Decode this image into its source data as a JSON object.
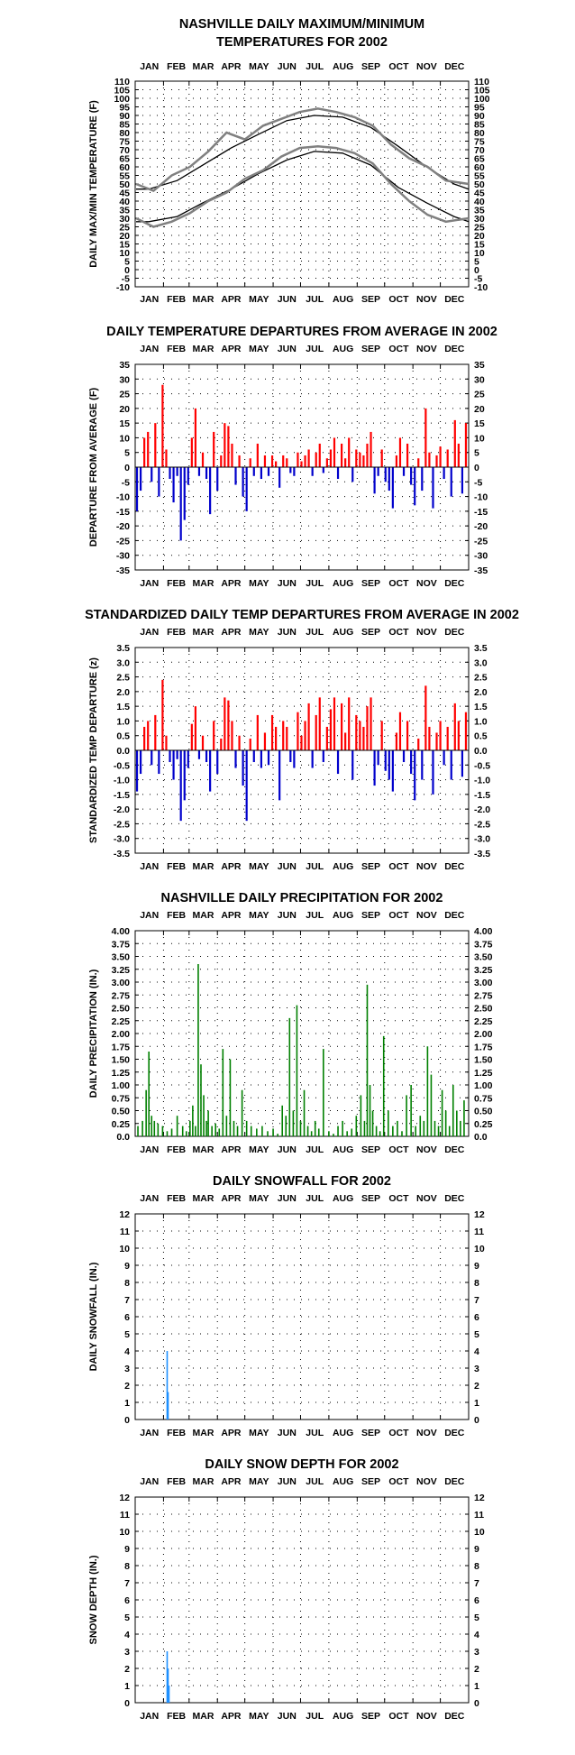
{
  "months": [
    "JAN",
    "FEB",
    "MAR",
    "APR",
    "MAY",
    "JUN",
    "JUL",
    "AUG",
    "SEP",
    "OCT",
    "NOV",
    "DEC"
  ],
  "colors": {
    "maxmin": "#808080",
    "normal": "#000000",
    "positive": "#ff0000",
    "negative": "#0000cc",
    "precip": "#008000",
    "snow": "#1e90ff"
  },
  "chart_data": [
    {
      "type": "line",
      "title": [
        "NASHVILLE DAILY MAXIMUM/MINIMUM",
        "TEMPERATURES FOR 2002"
      ],
      "ylabel": "DAILY MAX/MIN TEMPERATURE (F)",
      "ylim": [
        -10,
        110
      ],
      "ystep": 5,
      "yticks": [
        "110",
        "105",
        "100",
        "95",
        "90",
        "85",
        "80",
        "75",
        "70",
        "65",
        "60",
        "55",
        "50",
        "45",
        "40",
        "35",
        "30",
        "25",
        "20",
        "15",
        "10",
        "5",
        "0",
        "-5",
        "-10"
      ],
      "series": [
        {
          "role": "normal_max",
          "x": [
            1,
            15,
            46,
            74,
            105,
            135,
            166,
            196,
            227,
            258,
            288,
            319,
            349,
            365
          ],
          "values": [
            47,
            47,
            52,
            61,
            71,
            79,
            87,
            90,
            89,
            83,
            72,
            60,
            50,
            47
          ]
        },
        {
          "role": "normal_min",
          "x": [
            1,
            15,
            46,
            74,
            105,
            135,
            166,
            196,
            227,
            258,
            288,
            319,
            349,
            365
          ],
          "values": [
            28,
            28,
            31,
            39,
            47,
            56,
            64,
            69,
            68,
            61,
            48,
            39,
            31,
            28
          ]
        },
        {
          "role": "daily_max",
          "x": [
            1,
            20,
            40,
            60,
            80,
            100,
            120,
            140,
            160,
            180,
            200,
            220,
            240,
            260,
            280,
            300,
            320,
            340,
            365
          ],
          "values": [
            50,
            46,
            55,
            60,
            69,
            80,
            76,
            84,
            88,
            92,
            94,
            92,
            89,
            84,
            73,
            65,
            60,
            52,
            50
          ]
        },
        {
          "role": "daily_min",
          "x": [
            1,
            20,
            40,
            60,
            80,
            100,
            120,
            140,
            160,
            180,
            200,
            220,
            240,
            260,
            280,
            300,
            320,
            340,
            365
          ],
          "values": [
            30,
            25,
            28,
            33,
            40,
            45,
            53,
            58,
            66,
            71,
            72,
            71,
            68,
            62,
            50,
            40,
            32,
            28,
            30
          ]
        }
      ],
      "grid": true
    },
    {
      "type": "bar",
      "title": [
        "DAILY TEMPERATURE DEPARTURES FROM AVERAGE IN 2002"
      ],
      "ylabel": "DEPARTURE FROM AVERAGE (F)",
      "ylim": [
        -35,
        35
      ],
      "ystep": 5,
      "yticks": [
        "35",
        "30",
        "25",
        "20",
        "15",
        "10",
        "5",
        "0",
        "-5",
        "-10",
        "-15",
        "-20",
        "-25",
        "-30",
        "-35"
      ],
      "x": [
        2,
        6,
        10,
        14,
        18,
        22,
        26,
        30,
        34,
        38,
        42,
        46,
        50,
        54,
        58,
        62,
        66,
        70,
        74,
        78,
        82,
        86,
        90,
        94,
        98,
        102,
        106,
        110,
        114,
        118,
        122,
        126,
        130,
        134,
        138,
        142,
        146,
        150,
        154,
        158,
        162,
        166,
        170,
        174,
        178,
        182,
        186,
        190,
        194,
        198,
        202,
        206,
        210,
        214,
        218,
        222,
        226,
        230,
        234,
        238,
        242,
        246,
        250,
        254,
        258,
        262,
        266,
        270,
        274,
        278,
        282,
        286,
        290,
        294,
        298,
        302,
        306,
        310,
        314,
        318,
        322,
        326,
        330,
        334,
        338,
        342,
        346,
        350,
        354,
        358,
        362
      ],
      "values": [
        -15,
        -8,
        10,
        12,
        -5,
        15,
        -10,
        28,
        6,
        -4,
        -12,
        -3,
        -25,
        -18,
        -6,
        10,
        20,
        -3,
        5,
        -4,
        -16,
        12,
        -8,
        4,
        15,
        14,
        8,
        -6,
        4,
        -10,
        -15,
        3,
        -3,
        8,
        -4,
        4,
        -3,
        4,
        2,
        -7,
        4,
        3,
        -2,
        -3,
        5,
        2,
        4,
        6,
        -3,
        5,
        8,
        -2,
        3,
        6,
        10,
        -4,
        8,
        3,
        10,
        -5,
        6,
        5,
        4,
        8,
        12,
        -9,
        -3,
        6,
        -5,
        -8,
        -14,
        4,
        10,
        -3,
        8,
        -6,
        -13,
        3,
        -8,
        20,
        5,
        -14,
        4,
        7,
        -4,
        6,
        -10,
        16,
        8,
        -9,
        15
      ],
      "grid": true
    },
    {
      "type": "bar",
      "title": [
        "STANDARDIZED DAILY TEMP DEPARTURES FROM AVERAGE IN 2002"
      ],
      "ylabel": "STANDARDIZED TEMP DEPARTURE (z)",
      "ylim": [
        -3.5,
        3.5
      ],
      "ystep": 0.5,
      "yticks": [
        "3.5",
        "3.0",
        "2.5",
        "2.0",
        "1.5",
        "1.0",
        "0.5",
        "0.0",
        "-0.5",
        "-1.0",
        "-1.5",
        "-2.0",
        "-2.5",
        "-3.0",
        "-3.5"
      ],
      "x": [
        2,
        6,
        10,
        14,
        18,
        22,
        26,
        30,
        34,
        38,
        42,
        46,
        50,
        54,
        58,
        62,
        66,
        70,
        74,
        78,
        82,
        86,
        90,
        94,
        98,
        102,
        106,
        110,
        114,
        118,
        122,
        126,
        130,
        134,
        138,
        142,
        146,
        150,
        154,
        158,
        162,
        166,
        170,
        174,
        178,
        182,
        186,
        190,
        194,
        198,
        202,
        206,
        210,
        214,
        218,
        222,
        226,
        230,
        234,
        238,
        242,
        246,
        250,
        254,
        258,
        262,
        266,
        270,
        274,
        278,
        282,
        286,
        290,
        294,
        298,
        302,
        306,
        310,
        314,
        318,
        322,
        326,
        330,
        334,
        338,
        342,
        346,
        350,
        354,
        358,
        362
      ],
      "values": [
        -1.4,
        -0.8,
        0.8,
        1.0,
        -0.5,
        1.2,
        -0.8,
        2.4,
        0.5,
        -0.4,
        -1.0,
        -0.3,
        -2.4,
        -1.7,
        -0.6,
        0.9,
        1.5,
        -0.3,
        0.5,
        -0.4,
        -1.4,
        1.0,
        -0.8,
        0.4,
        1.8,
        1.7,
        1.0,
        -0.6,
        0.5,
        -1.2,
        -2.4,
        0.4,
        -0.4,
        1.2,
        -0.6,
        0.6,
        -0.5,
        1.2,
        0.8,
        -1.7,
        1.0,
        0.8,
        -0.4,
        -0.6,
        1.3,
        0.5,
        1.0,
        1.6,
        -0.6,
        1.2,
        1.8,
        -0.4,
        0.8,
        1.4,
        1.8,
        -0.8,
        1.6,
        0.6,
        1.8,
        -1.0,
        1.2,
        1.0,
        0.8,
        1.5,
        1.8,
        -1.2,
        -0.5,
        1.0,
        -0.7,
        -1.0,
        -1.4,
        0.6,
        1.3,
        -0.4,
        1.0,
        -0.8,
        -1.7,
        0.4,
        -1.0,
        2.2,
        0.8,
        -1.5,
        0.6,
        1.0,
        -0.5,
        0.8,
        -1.0,
        1.6,
        1.0,
        -0.9,
        1.3
      ],
      "grid": true
    },
    {
      "type": "bar",
      "title": [
        "NASHVILLE DAILY PRECIPITATION FOR 2002"
      ],
      "ylabel": "DAILY PRECIPITATION (IN.)",
      "ylim": [
        0,
        4
      ],
      "ystep": 0.25,
      "yticks": [
        "4.00",
        "3.75",
        "3.50",
        "3.25",
        "3.00",
        "2.75",
        "2.50",
        "2.25",
        "2.00",
        "1.75",
        "1.50",
        "1.25",
        "1.00",
        "0.75",
        "0.50",
        "0.25",
        "0.0"
      ],
      "x": [
        3,
        8,
        12,
        15,
        18,
        21,
        25,
        30,
        35,
        40,
        46,
        52,
        56,
        60,
        63,
        66,
        69,
        72,
        75,
        78,
        80,
        84,
        88,
        92,
        96,
        100,
        104,
        108,
        112,
        117,
        122,
        127,
        133,
        139,
        145,
        151,
        156,
        161,
        165,
        169,
        173,
        177,
        181,
        185,
        189,
        193,
        197,
        201,
        206,
        212,
        217,
        222,
        227,
        232,
        237,
        242,
        247,
        251,
        254,
        257,
        260,
        264,
        268,
        272,
        277,
        282,
        287,
        292,
        297,
        302,
        307,
        312,
        316,
        320,
        324,
        328,
        332,
        336,
        340,
        344,
        348,
        352,
        356,
        360
      ],
      "values": [
        0.2,
        0.3,
        0.9,
        1.65,
        0.4,
        0.3,
        0.25,
        0.2,
        0.1,
        0.15,
        0.4,
        0.2,
        0.1,
        0.3,
        0.6,
        0.2,
        3.35,
        1.4,
        0.8,
        0.3,
        0.5,
        0.2,
        0.25,
        0.15,
        1.7,
        0.4,
        1.5,
        0.3,
        0.2,
        0.9,
        0.3,
        0.2,
        0.15,
        0.2,
        0.1,
        0.15,
        0.05,
        0.6,
        0.4,
        2.3,
        0.5,
        2.55,
        0.3,
        0.9,
        0.2,
        0.1,
        0.3,
        0.15,
        1.7,
        0.1,
        0.05,
        0.2,
        0.3,
        0.1,
        0.15,
        0.4,
        0.8,
        0.3,
        2.95,
        1.0,
        0.5,
        0.2,
        0.1,
        1.95,
        0.5,
        0.2,
        0.3,
        0.1,
        0.8,
        1.0,
        0.2,
        0.4,
        0.3,
        1.75,
        1.2,
        0.3,
        0.2,
        0.9,
        0.5,
        0.2,
        1.0,
        0.5,
        0.3,
        0.7
      ],
      "grid": true
    },
    {
      "type": "bar",
      "title": [
        "DAILY SNOWFALL FOR 2002"
      ],
      "ylabel": "DAILY SNOWFALL (IN.)",
      "ylim": [
        0,
        12
      ],
      "ystep": 1,
      "yticks": [
        "12",
        "11",
        "10",
        "9",
        "8",
        "7",
        "6",
        "5",
        "4",
        "3",
        "2",
        "1",
        "0"
      ],
      "x": [
        35,
        36
      ],
      "values": [
        4.0,
        1.6
      ],
      "grid": true
    },
    {
      "type": "bar",
      "title": [
        "DAILY SNOW DEPTH FOR 2002"
      ],
      "ylabel": "SNOW DEPTH (IN.)",
      "ylim": [
        0,
        12
      ],
      "ystep": 1,
      "yticks": [
        "12",
        "11",
        "10",
        "9",
        "8",
        "7",
        "6",
        "5",
        "4",
        "3",
        "2",
        "1",
        "0"
      ],
      "x": [
        35,
        36,
        37
      ],
      "values": [
        3.0,
        2.0,
        1.0
      ],
      "grid": true
    }
  ]
}
